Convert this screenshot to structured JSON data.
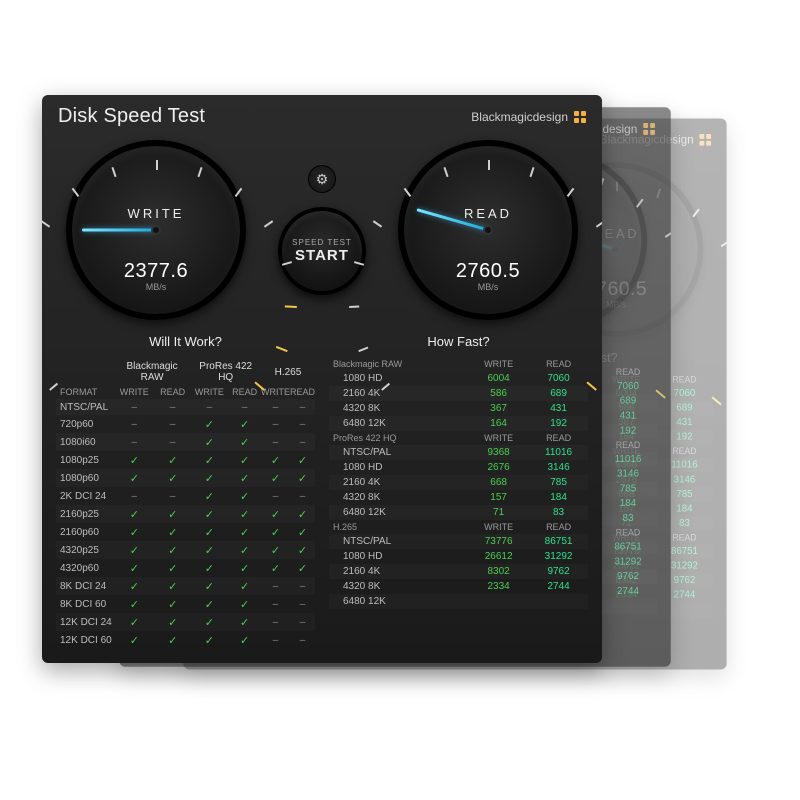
{
  "app": {
    "title": "Disk Speed Test",
    "brand": "Blackmagicdesign"
  },
  "buttons": {
    "start_small": "SPEED TEST",
    "start_big": "START"
  },
  "gauges": {
    "write": {
      "label": "WRITE",
      "value": "2377.6",
      "unit": "MB/s",
      "needle_deg": -90
    },
    "read": {
      "label": "READ",
      "value": "2760.5",
      "unit": "MB/s",
      "needle_deg": -74
    }
  },
  "colors": {
    "accent_needle": "#25b7e6",
    "tick_warn": "#f2c84b",
    "check": "#49d04e",
    "bg_panel_top": "#2b2b2b",
    "bg_panel_bot": "#1a1a1a"
  },
  "left": {
    "title": "Will It Work?",
    "format_header": "FORMAT",
    "sub_headers": [
      "WRITE",
      "READ"
    ],
    "groups": [
      "Blackmagic RAW",
      "ProRes 422 HQ",
      "H.265"
    ],
    "rows": [
      {
        "label": "NTSC/PAL",
        "cells": [
          "-",
          "-",
          "-",
          "-",
          "-",
          "-"
        ]
      },
      {
        "label": "720p60",
        "cells": [
          "-",
          "-",
          "c",
          "c",
          "-",
          "-"
        ]
      },
      {
        "label": "1080i60",
        "cells": [
          "-",
          "-",
          "c",
          "c",
          "-",
          "-"
        ]
      },
      {
        "label": "1080p25",
        "cells": [
          "c",
          "c",
          "c",
          "c",
          "c",
          "c"
        ]
      },
      {
        "label": "1080p60",
        "cells": [
          "c",
          "c",
          "c",
          "c",
          "c",
          "c"
        ]
      },
      {
        "label": "2K DCI 24",
        "cells": [
          "-",
          "-",
          "c",
          "c",
          "-",
          "-"
        ]
      },
      {
        "label": "2160p25",
        "cells": [
          "c",
          "c",
          "c",
          "c",
          "c",
          "c"
        ]
      },
      {
        "label": "2160p60",
        "cells": [
          "c",
          "c",
          "c",
          "c",
          "c",
          "c"
        ]
      },
      {
        "label": "4320p25",
        "cells": [
          "c",
          "c",
          "c",
          "c",
          "c",
          "c"
        ]
      },
      {
        "label": "4320p60",
        "cells": [
          "c",
          "c",
          "c",
          "c",
          "c",
          "c"
        ]
      },
      {
        "label": "8K DCI 24",
        "cells": [
          "c",
          "c",
          "c",
          "c",
          "-",
          "-"
        ]
      },
      {
        "label": "8K DCI 60",
        "cells": [
          "c",
          "c",
          "c",
          "c",
          "-",
          "-"
        ]
      },
      {
        "label": "12K DCI 24",
        "cells": [
          "c",
          "c",
          "c",
          "c",
          "-",
          "-"
        ]
      },
      {
        "label": "12K DCI 60",
        "cells": [
          "c",
          "c",
          "c",
          "c",
          "-",
          "-"
        ]
      }
    ]
  },
  "right": {
    "title": "How Fast?",
    "sub_headers": [
      "WRITE",
      "READ"
    ],
    "groups": [
      {
        "name": "Blackmagic RAW",
        "rows": [
          {
            "label": "1080 HD",
            "write": "6004",
            "read": "7060"
          },
          {
            "label": "2160 4K",
            "write": "586",
            "read": "689"
          },
          {
            "label": "4320 8K",
            "write": "367",
            "read": "431"
          },
          {
            "label": "6480 12K",
            "write": "164",
            "read": "192"
          }
        ]
      },
      {
        "name": "ProRes 422 HQ",
        "rows": [
          {
            "label": "NTSC/PAL",
            "write": "9368",
            "read": "11016"
          },
          {
            "label": "1080 HD",
            "write": "2676",
            "read": "3146"
          },
          {
            "label": "2160 4K",
            "write": "668",
            "read": "785"
          },
          {
            "label": "4320 8K",
            "write": "157",
            "read": "184"
          },
          {
            "label": "6480 12K",
            "write": "71",
            "read": "83"
          }
        ]
      },
      {
        "name": "H.265",
        "rows": [
          {
            "label": "NTSC/PAL",
            "write": "73776",
            "read": "86751"
          },
          {
            "label": "1080 HD",
            "write": "26612",
            "read": "31292"
          },
          {
            "label": "2160 4K",
            "write": "8302",
            "read": "9762"
          },
          {
            "label": "4320 8K",
            "write": "2334",
            "read": "2744"
          },
          {
            "label": "6480 12K",
            "write": "",
            "read": ""
          }
        ]
      }
    ]
  }
}
